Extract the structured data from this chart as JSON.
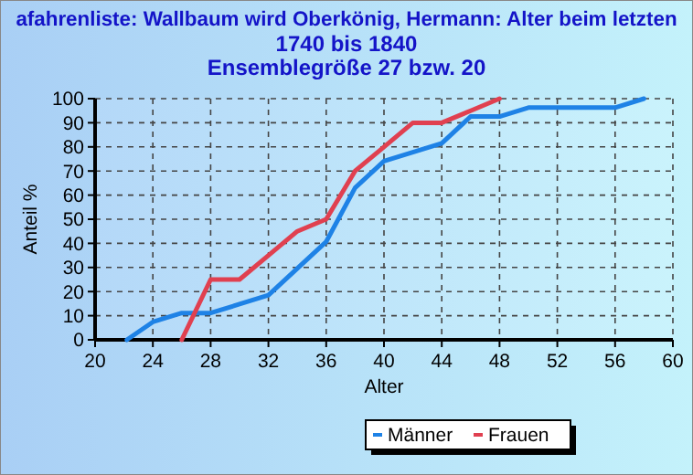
{
  "chart_data": {
    "type": "line",
    "title": "afahrenliste: Wallbaum wird Oberkönig, Hermann: Alter beim letzten",
    "subtitle": "1740 bis 1840\nEnsemblegröße 27 bzw. 20",
    "xlabel": "Alter",
    "ylabel": "Anteil %",
    "xlim": [
      20,
      60
    ],
    "xticks": [
      20,
      24,
      28,
      32,
      36,
      40,
      44,
      48,
      52,
      56,
      60
    ],
    "ylim": [
      0,
      100
    ],
    "yticks": [
      0,
      10,
      20,
      30,
      40,
      50,
      60,
      70,
      80,
      90,
      100
    ],
    "grid": true,
    "legend": "bottom",
    "line_style": "solid",
    "series": [
      {
        "name": "Männer",
        "color": "#1e82e6",
        "x": [
          22.2,
          24,
          26,
          28,
          30,
          32,
          34,
          36,
          38,
          40,
          44,
          46,
          48,
          50,
          56,
          58
        ],
        "values": [
          0,
          7.4,
          11.1,
          11.1,
          14.8,
          18.5,
          29.6,
          40.7,
          63,
          74.1,
          81.5,
          92.6,
          92.6,
          96.3,
          96.3,
          100
        ]
      },
      {
        "name": "Frauen",
        "color": "#e04050",
        "x": [
          26,
          28,
          30,
          32,
          34,
          36,
          38,
          40,
          42,
          44,
          46,
          48
        ],
        "values": [
          0,
          25,
          25,
          35,
          45,
          50,
          70,
          80,
          90,
          90,
          95,
          100
        ]
      }
    ]
  }
}
